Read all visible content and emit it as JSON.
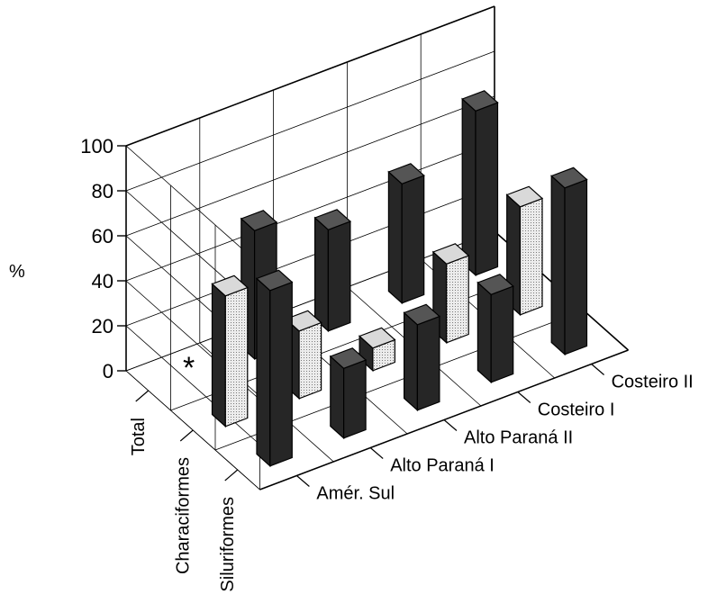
{
  "chart_data": {
    "type": "bar",
    "ylabel": "%",
    "ylim": [
      0,
      100
    ],
    "yticks": [
      "0",
      "20",
      "40",
      "60",
      "80",
      "100"
    ],
    "grid": true,
    "groups": [
      "Total",
      "Characiformes",
      "Siluriformes"
    ],
    "categories": [
      "Amér. Sul",
      "Alto Paraná I",
      "Alto Paraná II",
      "Costeiro I",
      "Costeiro II"
    ],
    "series": [
      {
        "name": "Total",
        "values": [
          null,
          57,
          45,
          53,
          73
        ]
      },
      {
        "name": "Characiformes",
        "values": [
          58,
          30,
          10,
          35,
          48
        ]
      },
      {
        "name": "Siluriformes",
        "values": [
          78,
          31,
          38,
          39,
          74
        ]
      }
    ],
    "annotations": [
      "*"
    ]
  },
  "colors": {
    "light_bar": "#e6e6e6",
    "dark_bar": "#262626",
    "line": "#000000"
  }
}
